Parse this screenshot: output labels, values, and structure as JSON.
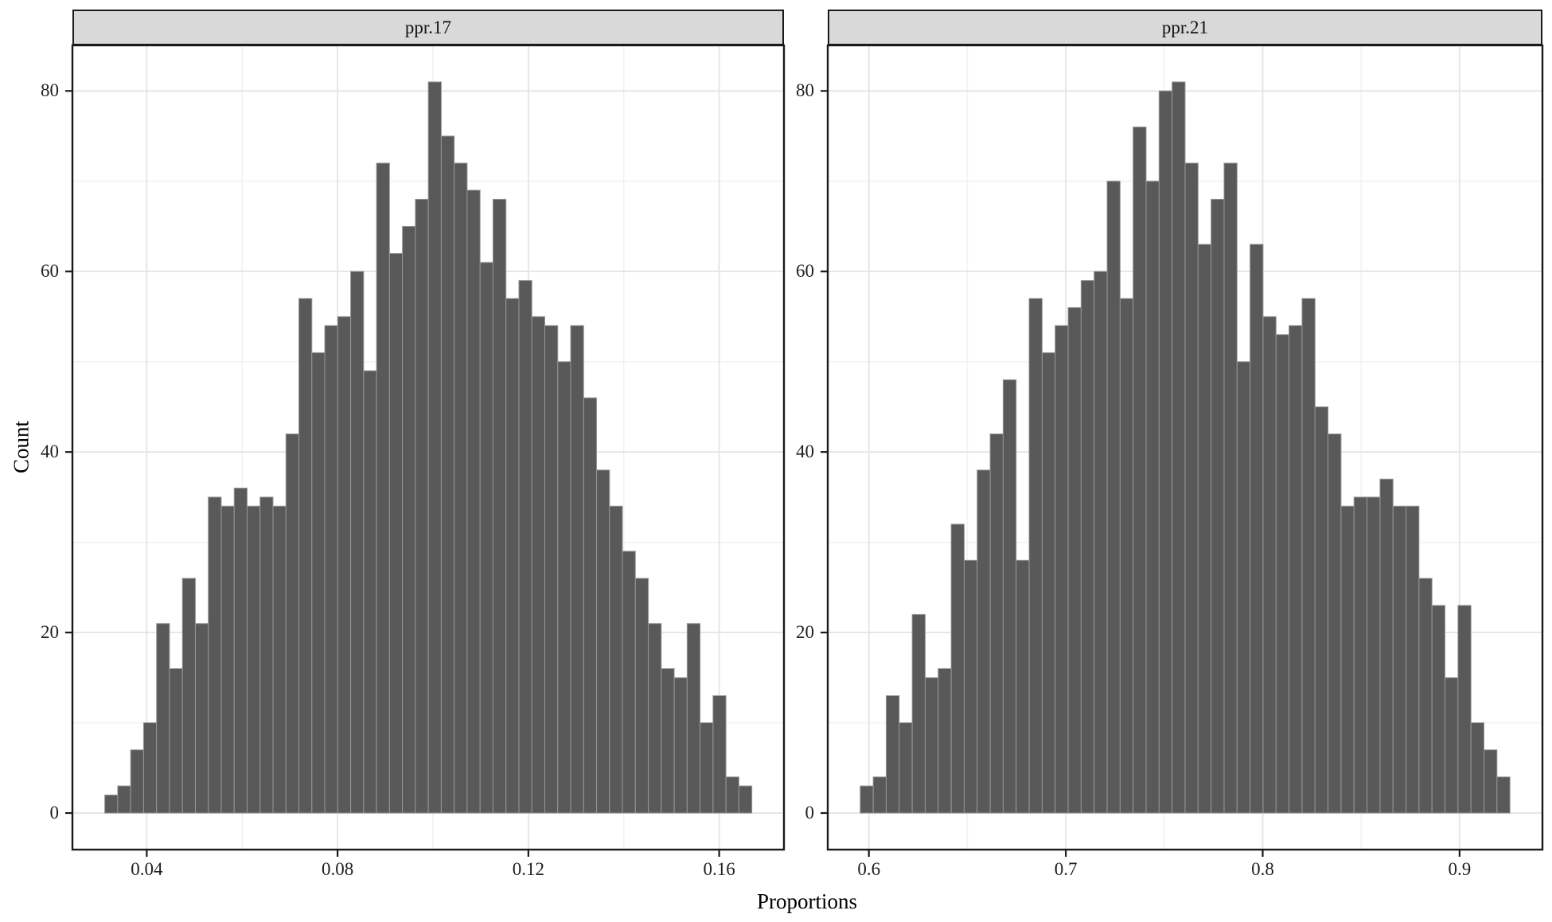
{
  "shared": {
    "xlabel": "Proportions",
    "ylabel": "Count"
  },
  "style": {
    "bar_fill": "#595959",
    "bar_stroke": "#979797",
    "grid_major": "#e4e4e4",
    "grid_minor": "#f2f2f2",
    "strip_bg": "#d9d9d9",
    "panel_border": "#1a1a1a",
    "tick_color": "#1a1a1a",
    "text_color": "#1f1f1f"
  },
  "chart_data": [
    {
      "type": "bar",
      "subtype": "histogram",
      "title": "ppr.17",
      "ylabel": "Count",
      "bin_start": 0.0312,
      "bin_width": 0.002713,
      "counts": [
        2,
        3,
        7,
        10,
        21,
        16,
        26,
        21,
        35,
        34,
        36,
        34,
        35,
        34,
        42,
        57,
        51,
        54,
        55,
        60,
        49,
        72,
        62,
        65,
        68,
        81,
        75,
        72,
        69,
        61,
        68,
        57,
        59,
        55,
        54,
        50,
        54,
        46,
        38,
        34,
        29,
        26,
        21,
        16,
        15,
        21,
        10,
        13,
        4,
        3
      ],
      "x_ticks": [
        0.04,
        0.08,
        0.12,
        0.16
      ],
      "x_tick_labels": [
        "0.04",
        "0.08",
        "0.12",
        "0.16"
      ],
      "y_ticks": [
        0,
        20,
        40,
        60,
        80
      ],
      "y_tick_labels": [
        "0",
        "20",
        "40",
        "60",
        "80"
      ],
      "xlim": [
        0.02442,
        0.17358
      ],
      "ylim": [
        -4.05,
        85.05
      ],
      "grid": true,
      "legend": "none"
    },
    {
      "type": "bar",
      "subtype": "histogram",
      "title": "ppr.21",
      "ylabel": "Count",
      "bin_start": 0.5956,
      "bin_width": 0.0066,
      "counts": [
        3,
        4,
        13,
        10,
        22,
        15,
        16,
        32,
        28,
        38,
        42,
        48,
        28,
        57,
        51,
        54,
        56,
        59,
        60,
        70,
        57,
        76,
        70,
        80,
        81,
        72,
        63,
        68,
        72,
        50,
        63,
        55,
        53,
        54,
        57,
        45,
        42,
        34,
        35,
        35,
        37,
        34,
        34,
        26,
        23,
        15,
        23,
        10,
        7,
        4
      ],
      "x_ticks": [
        0.6,
        0.7,
        0.8,
        0.9
      ],
      "x_tick_labels": [
        "0.6",
        "0.7",
        "0.8",
        "0.9"
      ],
      "y_ticks": [
        0,
        20,
        40,
        60,
        80
      ],
      "y_tick_labels": [
        "0",
        "20",
        "40",
        "60",
        "80"
      ],
      "xlim": [
        0.5791,
        0.9421
      ],
      "ylim": [
        -4.05,
        85.05
      ],
      "grid": true,
      "legend": "none"
    }
  ]
}
